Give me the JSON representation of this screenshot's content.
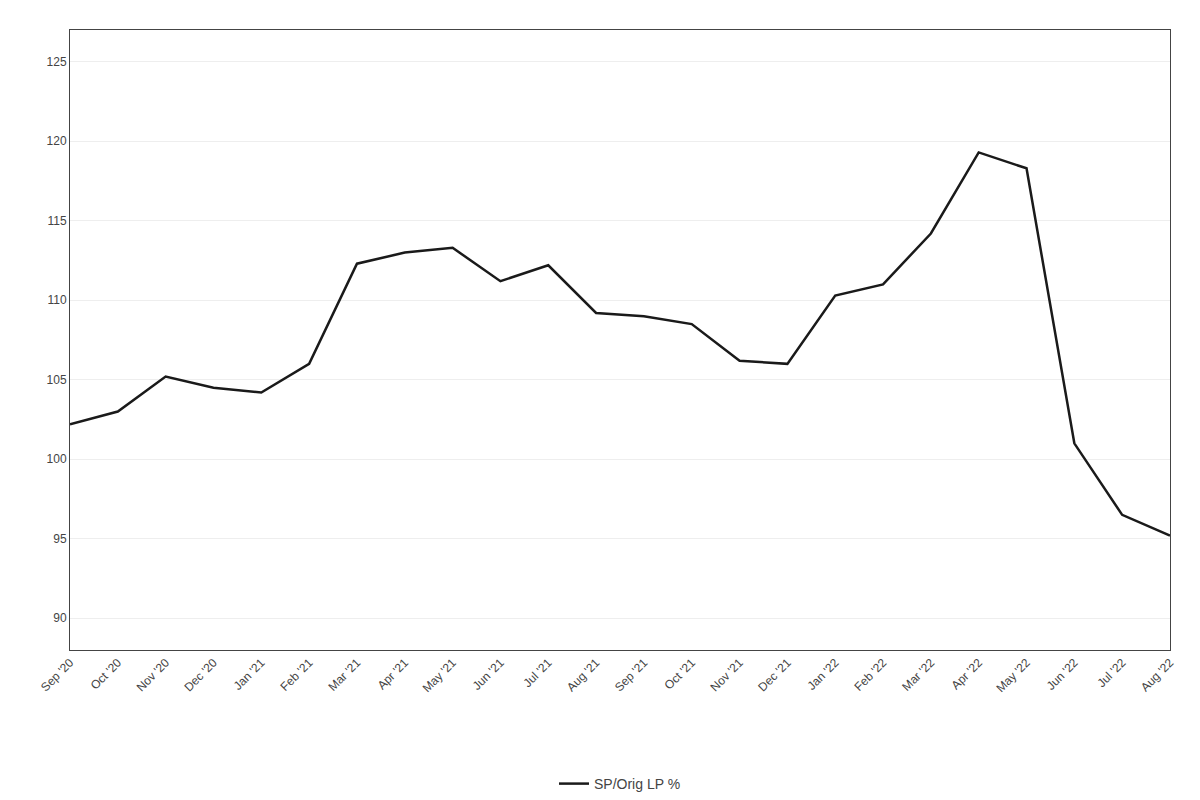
{
  "chart_data": {
    "type": "line",
    "categories": [
      "Sep '20",
      "Oct '20",
      "Nov '20",
      "Dec '20",
      "Jan '21",
      "Feb '21",
      "Mar '21",
      "Apr '21",
      "May '21",
      "Jun '21",
      "Jul '21",
      "Aug '21",
      "Sep '21",
      "Oct '21",
      "Nov '21",
      "Dec '21",
      "Jan '22",
      "Feb '22",
      "Mar '22",
      "Apr '22",
      "May '22",
      "Jun '22",
      "Jul '22",
      "Aug '22"
    ],
    "series": [
      {
        "name": "SP/Orig LP %",
        "color": "#1a1a1a",
        "values": [
          102.2,
          103.0,
          105.2,
          104.5,
          104.2,
          106.0,
          112.3,
          113.0,
          113.3,
          111.2,
          112.2,
          109.2,
          109.0,
          108.5,
          106.2,
          106.0,
          110.3,
          111.0,
          114.2,
          119.3,
          118.3,
          101.0,
          96.5,
          95.2
        ]
      }
    ],
    "ylim": [
      88,
      127
    ],
    "yticks": [
      90,
      95,
      100,
      105,
      110,
      115,
      120,
      125
    ],
    "grid": true,
    "legend": "bottom"
  }
}
